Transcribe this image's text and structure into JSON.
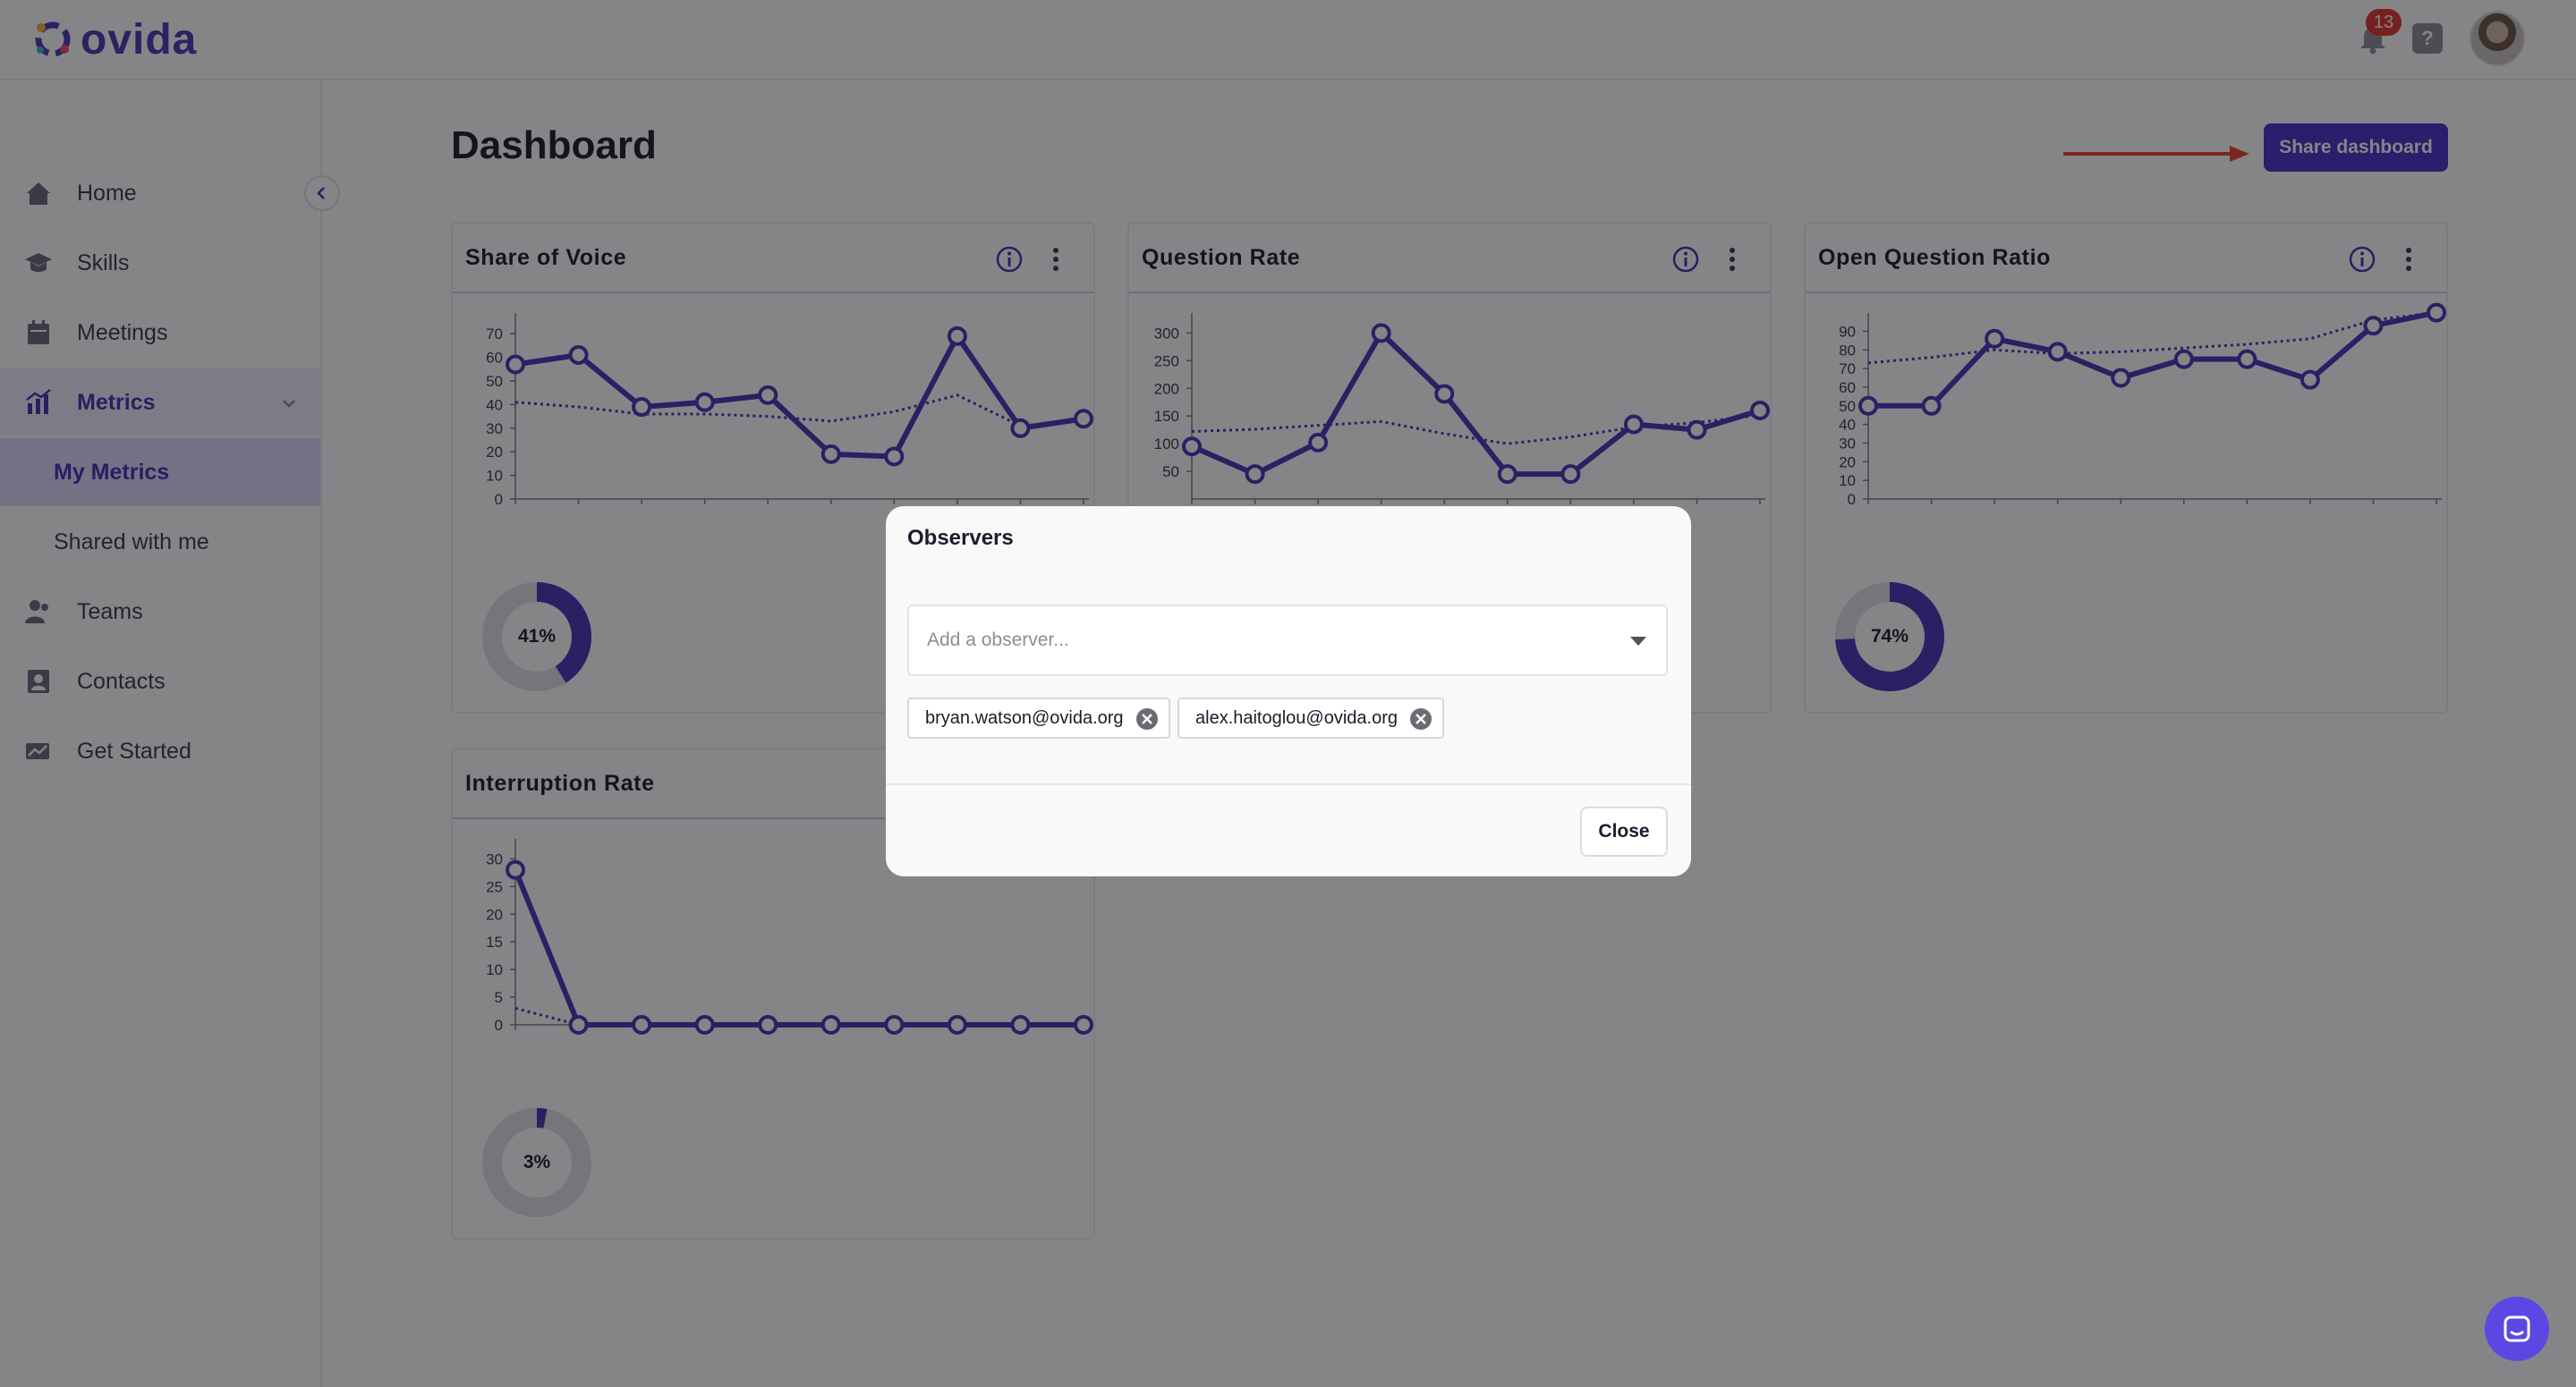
{
  "app": {
    "name": "ovida"
  },
  "header": {
    "notification_count": "13",
    "help_label": "?"
  },
  "sidebar": {
    "items": [
      {
        "label": "Home",
        "icon": "home-icon"
      },
      {
        "label": "Skills",
        "icon": "graduation-cap-icon"
      },
      {
        "label": "Meetings",
        "icon": "calendar-icon"
      },
      {
        "label": "Metrics",
        "icon": "metrics-icon"
      },
      {
        "label": "My Metrics"
      },
      {
        "label": "Shared with me"
      },
      {
        "label": "Teams",
        "icon": "teams-icon"
      },
      {
        "label": "Contacts",
        "icon": "contacts-icon"
      },
      {
        "label": "Get Started",
        "icon": "get-started-icon"
      }
    ]
  },
  "page": {
    "title": "Dashboard",
    "share_label": "Share dashboard"
  },
  "colors": {
    "accent": "#4733c7",
    "series": "#4a35b5",
    "donut_track": "#dfdfe3",
    "overlay": "rgba(12,12,18,0.5)"
  },
  "cards": [
    {
      "title": "Share of Voice",
      "donut_label": "41%",
      "donut_value": 0.41
    },
    {
      "title": "Question Rate",
      "donut_label": "",
      "donut_value": 0
    },
    {
      "title": "Open Question Ratio",
      "donut_label": "74%",
      "donut_value": 0.74
    },
    {
      "title": "Interruption Rate",
      "donut_label": "3%",
      "donut_value": 0.03
    }
  ],
  "chart_data": [
    {
      "type": "line",
      "title": "Share of Voice",
      "yticks": [
        "0",
        "10",
        "20",
        "30",
        "40",
        "50",
        "60",
        "70"
      ],
      "ylim": [
        0,
        75
      ],
      "x": [
        1,
        2,
        3,
        4,
        5,
        6,
        7,
        8,
        9,
        10
      ],
      "series": [
        {
          "values": [
            57,
            61,
            39,
            41,
            44,
            19,
            18,
            69,
            30,
            34
          ]
        },
        {
          "values": [
            41,
            39,
            36,
            36,
            35,
            33,
            37,
            44,
            31,
            33
          ]
        }
      ]
    },
    {
      "type": "line",
      "title": "Question Rate",
      "yticks": [
        "50",
        "100",
        "150",
        "200",
        "250",
        "300"
      ],
      "ylim": [
        0,
        320
      ],
      "x": [
        1,
        2,
        3,
        4,
        5,
        6,
        7,
        8,
        9,
        10
      ],
      "series": [
        {
          "values": [
            95,
            45,
            102,
            300,
            190,
            45,
            45,
            135,
            125,
            160
          ]
        },
        {
          "values": [
            122,
            126,
            133,
            140,
            118,
            100,
            112,
            130,
            138,
            152
          ]
        }
      ]
    },
    {
      "type": "line",
      "title": "Open Question Ratio",
      "yticks": [
        "0",
        "10",
        "20",
        "30",
        "40",
        "50",
        "60",
        "70",
        "80",
        "90"
      ],
      "ylim": [
        0,
        95
      ],
      "x": [
        1,
        2,
        3,
        4,
        5,
        6,
        7,
        8,
        9,
        10
      ],
      "series": [
        {
          "values": [
            50,
            50,
            86,
            79,
            65,
            75,
            75,
            64,
            93,
            100
          ]
        },
        {
          "values": [
            73,
            76,
            80,
            78,
            79,
            81,
            83,
            86,
            96,
            100
          ]
        }
      ]
    },
    {
      "type": "line",
      "title": "Interruption Rate",
      "yticks": [
        "0",
        "5",
        "10",
        "15",
        "20",
        "25",
        "30"
      ],
      "ylim": [
        0,
        32
      ],
      "x": [
        1,
        2,
        3,
        4,
        5,
        6,
        7,
        8,
        9,
        10
      ],
      "series": [
        {
          "values": [
            28,
            0,
            0,
            0,
            0,
            0,
            0,
            0,
            0,
            0
          ]
        },
        {
          "values": [
            3,
            0,
            0,
            0,
            0,
            0,
            0,
            0,
            0,
            0
          ]
        }
      ]
    }
  ],
  "modal": {
    "title": "Observers",
    "select_placeholder": "Add a observer...",
    "observers": [
      "bryan.watson@ovida.org",
      "alex.haitoglou@ovida.org"
    ],
    "close_label": "Close"
  }
}
